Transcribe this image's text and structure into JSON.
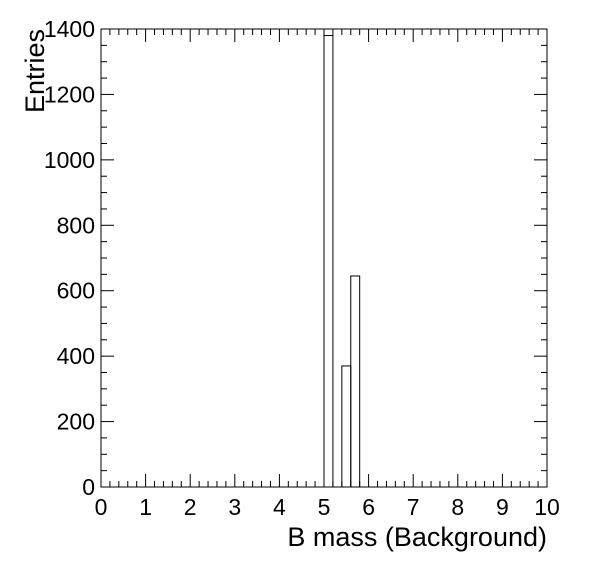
{
  "chart_data": {
    "type": "histogram",
    "xlabel": "B mass (Background)",
    "ylabel": "Entries",
    "xlim": [
      0,
      10
    ],
    "ylim": [
      0,
      1400
    ],
    "xticks": [
      0,
      1,
      2,
      3,
      4,
      5,
      6,
      7,
      8,
      9,
      10
    ],
    "yticks": [
      0,
      200,
      400,
      600,
      800,
      1000,
      1200,
      1400
    ],
    "x_minor_step": 0.2,
    "y_minor_step": 50,
    "bin_width": 0.2,
    "bins": [
      {
        "x0": 5.0,
        "x1": 5.2,
        "value": 1380
      },
      {
        "x0": 5.2,
        "x1": 5.4,
        "value": 0
      },
      {
        "x0": 5.4,
        "x1": 5.6,
        "value": 370
      },
      {
        "x0": 5.6,
        "x1": 5.8,
        "value": 645
      }
    ],
    "grid": false,
    "legend": "none"
  }
}
